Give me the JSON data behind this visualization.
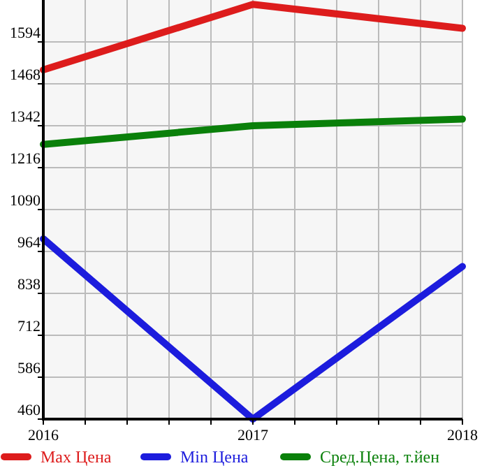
{
  "chart_data": {
    "type": "line",
    "x": [
      2016,
      2017,
      2018
    ],
    "series": [
      {
        "name": "Max Цена",
        "color": "#dd1c1c",
        "values": [
          1510,
          1707,
          1635
        ]
      },
      {
        "name": "Min Цена",
        "color": "#1c1cdd",
        "values": [
          1002,
          460,
          919
        ]
      },
      {
        "name": "Сред.Цена, т.йен",
        "color": "#0a800a",
        "values": [
          1286,
          1342,
          1362
        ]
      }
    ],
    "xlim": [
      2016,
      2018
    ],
    "xticks": [
      2016,
      {
        "value": 2016.2,
        "label": null
      },
      {
        "value": 2016.4,
        "label": null
      },
      {
        "value": 2016.6,
        "label": null
      },
      {
        "value": 2016.8,
        "label": null
      },
      2017,
      {
        "value": 2017.2,
        "label": null
      },
      {
        "value": 2017.4,
        "label": null
      },
      {
        "value": 2017.6,
        "label": null
      },
      {
        "value": 2017.8,
        "label": null
      },
      2018
    ],
    "ylim": [
      460,
      1720
    ],
    "yticks": [
      460,
      586,
      712,
      838,
      964,
      1090,
      1216,
      1342,
      1468,
      1594
    ],
    "grid": true,
    "legend": "bottom",
    "marker": "none",
    "line_style": "solid"
  }
}
